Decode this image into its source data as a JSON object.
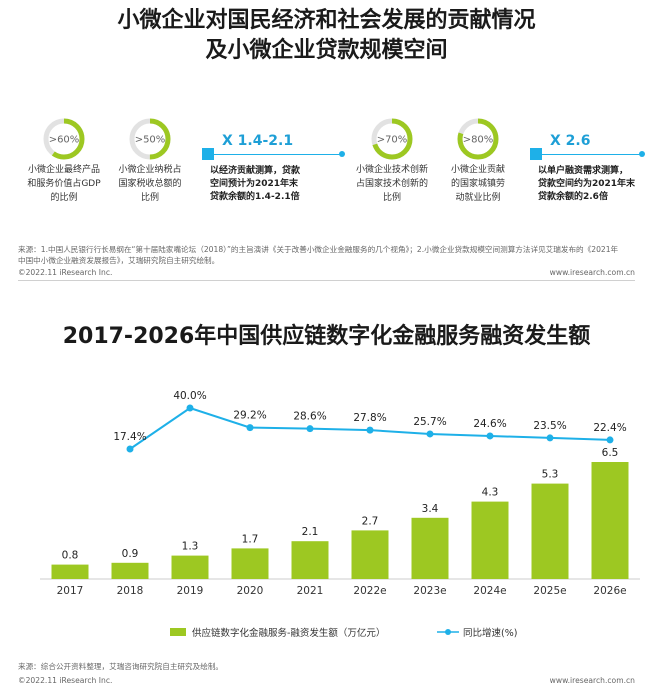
{
  "header": {
    "title_line1": "小微企业对国民经济和社会发展的贡献情况",
    "title_line2": "及小微企业贷款规模空间"
  },
  "stats": [
    {
      "value": 0.6,
      "pct_label": ">60%",
      "label_lines": [
        "小微企业最终产品",
        "和服务价值占GDP",
        "的比例"
      ]
    },
    {
      "value": 0.5,
      "pct_label": ">50%",
      "label_lines": [
        "小微企业纳税占",
        "国家税收总额的",
        "比例"
      ]
    },
    {
      "value": 0.7,
      "pct_label": ">70%",
      "label_lines": [
        "小微企业技术创新",
        "占国家技术创新的",
        "比例"
      ]
    },
    {
      "value": 0.8,
      "pct_label": ">80%",
      "label_lines": [
        "小微企业贡献",
        "的国家城镇劳",
        "动就业比例"
      ]
    }
  ],
  "multipliers": [
    {
      "label": "X 1.4-2.1",
      "desc_lines": [
        "以经济贡献测算，贷款",
        "空间预计为2021年末",
        "贷款余额的1.4-2.1倍"
      ]
    },
    {
      "label": "X 2.6",
      "desc_lines": [
        "以单户融资需求测算，",
        "贷款空间约为2021年末",
        "贷款余额的2.6倍"
      ]
    }
  ],
  "source1_lines": [
    "来源：1.中国人民银行行长易纲在“第十届陆家嘴论坛（2018）”的主旨演讲《关于改善小微企业金融服务的几个视角》；2.小微企业贷款规模空间测算方法详见艾瑞发布的《2021年",
    "中国中小微企业融资发展报告》，艾瑞研究院自主研究绘制。"
  ],
  "footer": {
    "copyright": "©2022.11 iResearch Inc.",
    "website": "www.iresearch.com.cn"
  },
  "chart_data": {
    "type": "bar",
    "title": "2017-2026年中国供应链数字化金融服务融资发生额",
    "categories": [
      "2017",
      "2018",
      "2019",
      "2020",
      "2021",
      "2022e",
      "2023e",
      "2024e",
      "2025e",
      "2026e"
    ],
    "series": [
      {
        "name": "供应链数字化金融服务-融资发生额（万亿元）",
        "type": "bar",
        "values": [
          0.8,
          0.9,
          1.3,
          1.7,
          2.1,
          2.7,
          3.4,
          4.3,
          5.3,
          6.5
        ],
        "labels": [
          "0.8",
          "0.9",
          "1.3",
          "1.7",
          "2.1",
          "2.7",
          "3.4",
          "4.3",
          "5.3",
          "6.5"
        ],
        "color": "#9DC822"
      },
      {
        "name": "同比增速(%)",
        "type": "line",
        "values": [
          null,
          17.4,
          40.0,
          29.2,
          28.6,
          27.8,
          25.7,
          24.6,
          23.5,
          22.4
        ],
        "labels": [
          "",
          "17.4%",
          "40.0%",
          "29.2%",
          "28.6%",
          "27.8%",
          "25.7%",
          "24.6%",
          "23.5%",
          "22.4%"
        ],
        "color": "#1EB0E8"
      }
    ],
    "grid": false,
    "legend_position": "bottom"
  },
  "source2": "来源：综合公开资料整理，艾瑞咨询研究院自主研究及绘制。"
}
